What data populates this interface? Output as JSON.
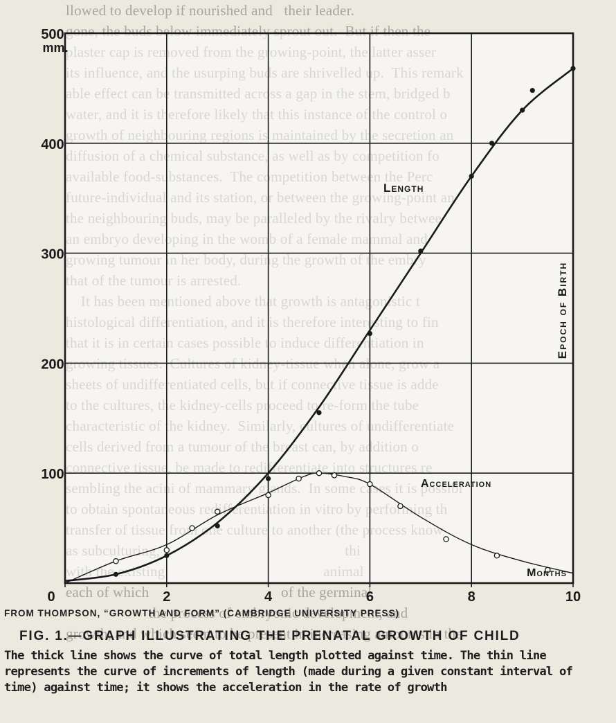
{
  "page": {
    "background_text": [
      "llowed to develop if nourished and   their leader.",
      "gone, the buds below immediately sprout out.  But if then the",
      "plaster cap is removed from the growing-point, the latter asser",
      "its influence, and the usurping buds are shrivelled up.  This remark",
      "able effect can be transmitted across a gap in the stem, bridged b",
      "water, and it is therefore likely that this instance of the control o",
      "growth of neighbouring regions is maintained by the secretion an",
      "diffusion of a chemical substance, as well as by competition fo",
      "available food-substances.  The competition between the Perc",
      "future-individual and its station, or between the growing-point an",
      "the neighbouring buds, may be paralleled by the rivalry betwee",
      "an embryo developing in the womb of a female mammal and",
      "growing tumour in her body, during the growth of the embry",
      "that of the tumour is arrested.",
      "    It has been mentioned above that growth is antagonistic t",
      "histological differentiation, and it is therefore interesting to fin",
      "that it is in certain cases possible to induce differentiation in",
      "growing tissues.  Cultures of kidney-tissue when alone, grow a",
      "sheets of undifferentiated cells, but if connective tissue is adde",
      "to the cultures, the kidney-cells proceed to re-form the tube",
      "characteristic of the kidney.  Similarly, cultures of undifferentiate",
      "cells derived from a tumour of the breast can, by addition o",
      "connective tissue, be made to redifferentiate into structures re",
      "sembling the acini of mammary glands.  In some cases it is possibl",
      "to obtain spontaneous redifferentiation in vitro by performing th",
      "transfer of tissue from one culture to another (the process know",
      "as subculturing,                                                 thi",
      "with the existing                                          animal",
      "each of which                                   of the germinal",
      "                      the process of embryonic development, and",
      "growth, and which seem to be present in increasing amounts in the"
    ]
  },
  "chart_data": {
    "type": "line",
    "title": "",
    "xlabel": "Months",
    "ylabel": "mm.",
    "xlim": [
      0,
      10
    ],
    "ylim": [
      0,
      500
    ],
    "x_ticks": [
      0,
      2,
      4,
      6,
      8,
      10
    ],
    "x_tick_labels": [
      "0",
      "2",
      "4",
      "6",
      "8",
      "10"
    ],
    "y_ticks": [
      100,
      200,
      300,
      400,
      500
    ],
    "y_tick_labels": [
      "100",
      "200",
      "300",
      "400",
      "500"
    ],
    "grid": true,
    "vertical_annotation": "Epoch of Birth",
    "series": [
      {
        "name": "Length",
        "style": "thick",
        "points": [
          [
            1.0,
            8
          ],
          [
            2.0,
            25
          ],
          [
            3.0,
            52
          ],
          [
            4.0,
            95
          ],
          [
            5.0,
            155
          ],
          [
            6.0,
            227
          ],
          [
            7.0,
            302
          ],
          [
            8.0,
            370
          ],
          [
            8.4,
            400
          ],
          [
            9.0,
            430
          ],
          [
            9.2,
            448
          ],
          [
            10.0,
            468
          ]
        ],
        "curve": [
          [
            0,
            2
          ],
          [
            1,
            8
          ],
          [
            2,
            25
          ],
          [
            3,
            55
          ],
          [
            4,
            100
          ],
          [
            5,
            160
          ],
          [
            6,
            230
          ],
          [
            7,
            300
          ],
          [
            8,
            370
          ],
          [
            9,
            430
          ],
          [
            10,
            468
          ]
        ]
      },
      {
        "name": "Acceleration",
        "style": "thin",
        "points": [
          [
            1.0,
            20
          ],
          [
            2.0,
            30
          ],
          [
            2.5,
            50
          ],
          [
            3.0,
            65
          ],
          [
            4.0,
            80
          ],
          [
            4.6,
            95
          ],
          [
            5.0,
            100
          ],
          [
            5.3,
            98
          ],
          [
            6.0,
            90
          ],
          [
            6.6,
            70
          ],
          [
            7.5,
            40
          ],
          [
            8.5,
            25
          ],
          [
            9.5,
            12
          ]
        ],
        "curve": [
          [
            0,
            0
          ],
          [
            1,
            20
          ],
          [
            2,
            35
          ],
          [
            3,
            62
          ],
          [
            4,
            82
          ],
          [
            4.7,
            97
          ],
          [
            5,
            100
          ],
          [
            5.5,
            97
          ],
          [
            6,
            90
          ],
          [
            7,
            60
          ],
          [
            8,
            35
          ],
          [
            9,
            20
          ],
          [
            10,
            9
          ]
        ]
      }
    ],
    "labels": {
      "length": "Length",
      "acceleration": "Acceleration"
    },
    "colors": {
      "ink": "#1a1a1a",
      "paper": "#ece9df"
    }
  },
  "caption": {
    "source": "FROM THOMPSON, “GROWTH AND FORM” (CAMBRIDGE UNIVERSITY PRESS)",
    "title": "FIG. 1.—GRAPH ILLUSTRATING THE PRENATAL GROWTH OF CHILD",
    "text": "The thick line shows the curve of total length plotted against time. The thin line represents the curve of increments of length (made during a given constant interval of time) against time; it shows the acceleration in the rate of growth"
  }
}
